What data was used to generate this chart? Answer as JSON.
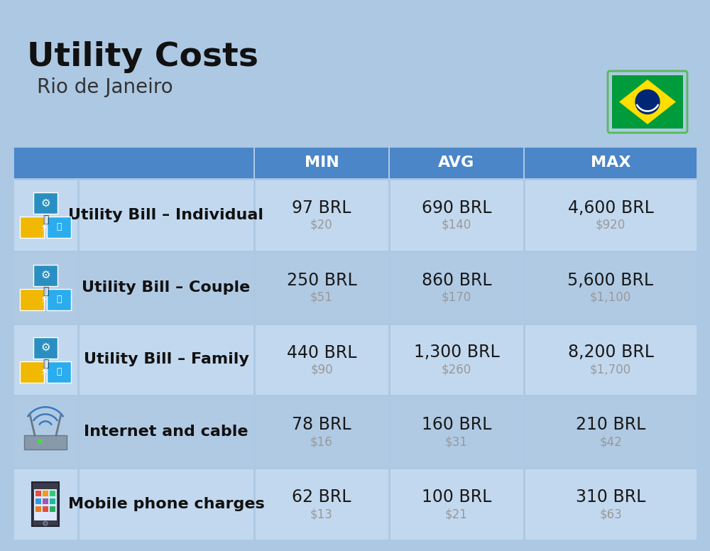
{
  "title": "Utility Costs",
  "subtitle": "Rio de Janeiro",
  "background_color": "#adc8e3",
  "header_color": "#4a86c8",
  "header_text_color": "#ffffff",
  "row_colors": [
    "#c2d8ee",
    "#b0cae4"
  ],
  "header_labels": [
    "MIN",
    "AVG",
    "MAX"
  ],
  "rows": [
    {
      "label": "Utility Bill – Individual",
      "icon": "utility",
      "min_brl": "97 BRL",
      "min_usd": "$20",
      "avg_brl": "690 BRL",
      "avg_usd": "$140",
      "max_brl": "4,600 BRL",
      "max_usd": "$920"
    },
    {
      "label": "Utility Bill – Couple",
      "icon": "utility",
      "min_brl": "250 BRL",
      "min_usd": "$51",
      "avg_brl": "860 BRL",
      "avg_usd": "$170",
      "max_brl": "5,600 BRL",
      "max_usd": "$1,100"
    },
    {
      "label": "Utility Bill – Family",
      "icon": "utility",
      "min_brl": "440 BRL",
      "min_usd": "$90",
      "avg_brl": "1,300 BRL",
      "avg_usd": "$260",
      "max_brl": "8,200 BRL",
      "max_usd": "$1,700"
    },
    {
      "label": "Internet and cable",
      "icon": "internet",
      "min_brl": "78 BRL",
      "min_usd": "$16",
      "avg_brl": "160 BRL",
      "avg_usd": "$31",
      "max_brl": "210 BRL",
      "max_usd": "$42"
    },
    {
      "label": "Mobile phone charges",
      "icon": "mobile",
      "min_brl": "62 BRL",
      "min_usd": "$13",
      "avg_brl": "100 BRL",
      "avg_usd": "$21",
      "max_brl": "310 BRL",
      "max_usd": "$63"
    }
  ],
  "brl_fontsize": 17,
  "usd_fontsize": 12,
  "label_fontsize": 16,
  "header_fontsize": 16,
  "title_fontsize": 34,
  "subtitle_fontsize": 20,
  "usd_color": "#999999",
  "label_color": "#111111",
  "brl_color": "#1a1a1a",
  "sep_color": "#adc8e3"
}
